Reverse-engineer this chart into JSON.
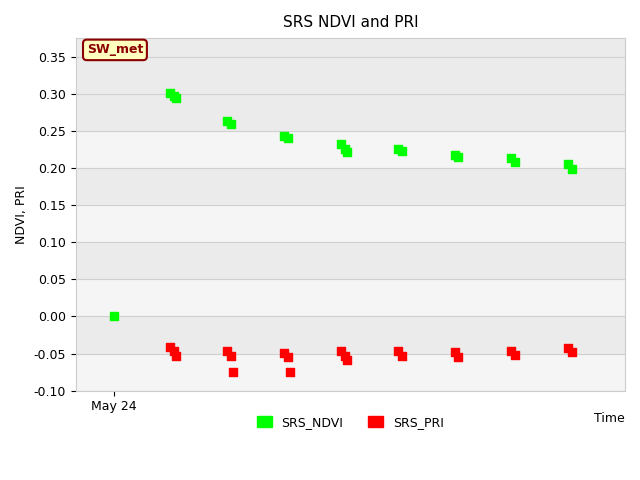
{
  "title": "SRS NDVI and PRI",
  "xlabel": "Time",
  "ylabel": "NDVI, PRI",
  "ylim": [
    -0.1,
    0.375
  ],
  "annotation_text": "SW_met",
  "annotation_color": "#8B0000",
  "annotation_bg": "#FFFFC0",
  "ndvi_color": "#00FF00",
  "pri_color": "#FF0000",
  "xstart_label": "May 24",
  "ndvi_data": [
    [
      0.5,
      0.001
    ],
    [
      2.0,
      0.301
    ],
    [
      2.1,
      0.297
    ],
    [
      2.15,
      0.294
    ],
    [
      3.5,
      0.263
    ],
    [
      3.6,
      0.259
    ],
    [
      5.0,
      0.243
    ],
    [
      5.1,
      0.24
    ],
    [
      6.5,
      0.232
    ],
    [
      6.6,
      0.225
    ],
    [
      6.65,
      0.222
    ],
    [
      8.0,
      0.226
    ],
    [
      8.1,
      0.223
    ],
    [
      9.5,
      0.218
    ],
    [
      9.6,
      0.215
    ],
    [
      11.0,
      0.213
    ],
    [
      11.1,
      0.208
    ],
    [
      12.5,
      0.206
    ],
    [
      12.6,
      0.199
    ]
  ],
  "pri_data": [
    [
      2.0,
      -0.041
    ],
    [
      2.1,
      -0.047
    ],
    [
      2.15,
      -0.053
    ],
    [
      3.5,
      -0.047
    ],
    [
      3.6,
      -0.053
    ],
    [
      3.65,
      -0.075
    ],
    [
      5.0,
      -0.049
    ],
    [
      5.1,
      -0.055
    ],
    [
      5.15,
      -0.075
    ],
    [
      6.5,
      -0.047
    ],
    [
      6.6,
      -0.053
    ],
    [
      6.65,
      -0.058
    ],
    [
      8.0,
      -0.047
    ],
    [
      8.1,
      -0.053
    ],
    [
      9.5,
      -0.048
    ],
    [
      9.6,
      -0.054
    ],
    [
      11.0,
      -0.046
    ],
    [
      11.1,
      -0.052
    ],
    [
      12.5,
      -0.042
    ],
    [
      12.6,
      -0.048
    ]
  ],
  "band_light": "#EBEBEB",
  "band_white": "#F5F5F5",
  "grid_line_color": "#D0D0D0",
  "title_fontsize": 11,
  "label_fontsize": 9,
  "tick_fontsize": 9
}
